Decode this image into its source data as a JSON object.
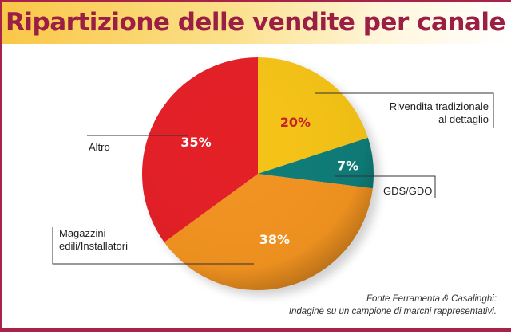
{
  "chart_data": {
    "type": "pie",
    "title": "Ripartizione delle vendite per canale",
    "slices": [
      {
        "label": "Rivendita tradizionale al dettaglio",
        "label_lines": [
          "Rivendita tradizionale",
          "al dettaglio"
        ],
        "value": 20,
        "value_label": "20%",
        "color": "#f5c316",
        "text_color": "#c8202a"
      },
      {
        "label": "GDS/GDO",
        "label_lines": [
          "GDS/GDO"
        ],
        "value": 7,
        "value_label": "7%",
        "color": "#0e7c78",
        "text_color": "#ffffff"
      },
      {
        "label": "Magazzini edili/Installatori",
        "label_lines": [
          "Magazzini",
          "edili/Installatori"
        ],
        "value": 38,
        "value_label": "38%",
        "color": "#f29320",
        "text_color": "#ffffff"
      },
      {
        "label": "Altro",
        "label_lines": [
          "Altro"
        ],
        "value": 35,
        "value_label": "35%",
        "color": "#e41f26",
        "text_color": "#ffffff"
      }
    ],
    "start": "top",
    "direction": "clockwise"
  },
  "source": {
    "line1": "Fonte Ferramenta & Casalinghi:",
    "line2": "Indagine su un campione di marchi rappresentativi."
  }
}
